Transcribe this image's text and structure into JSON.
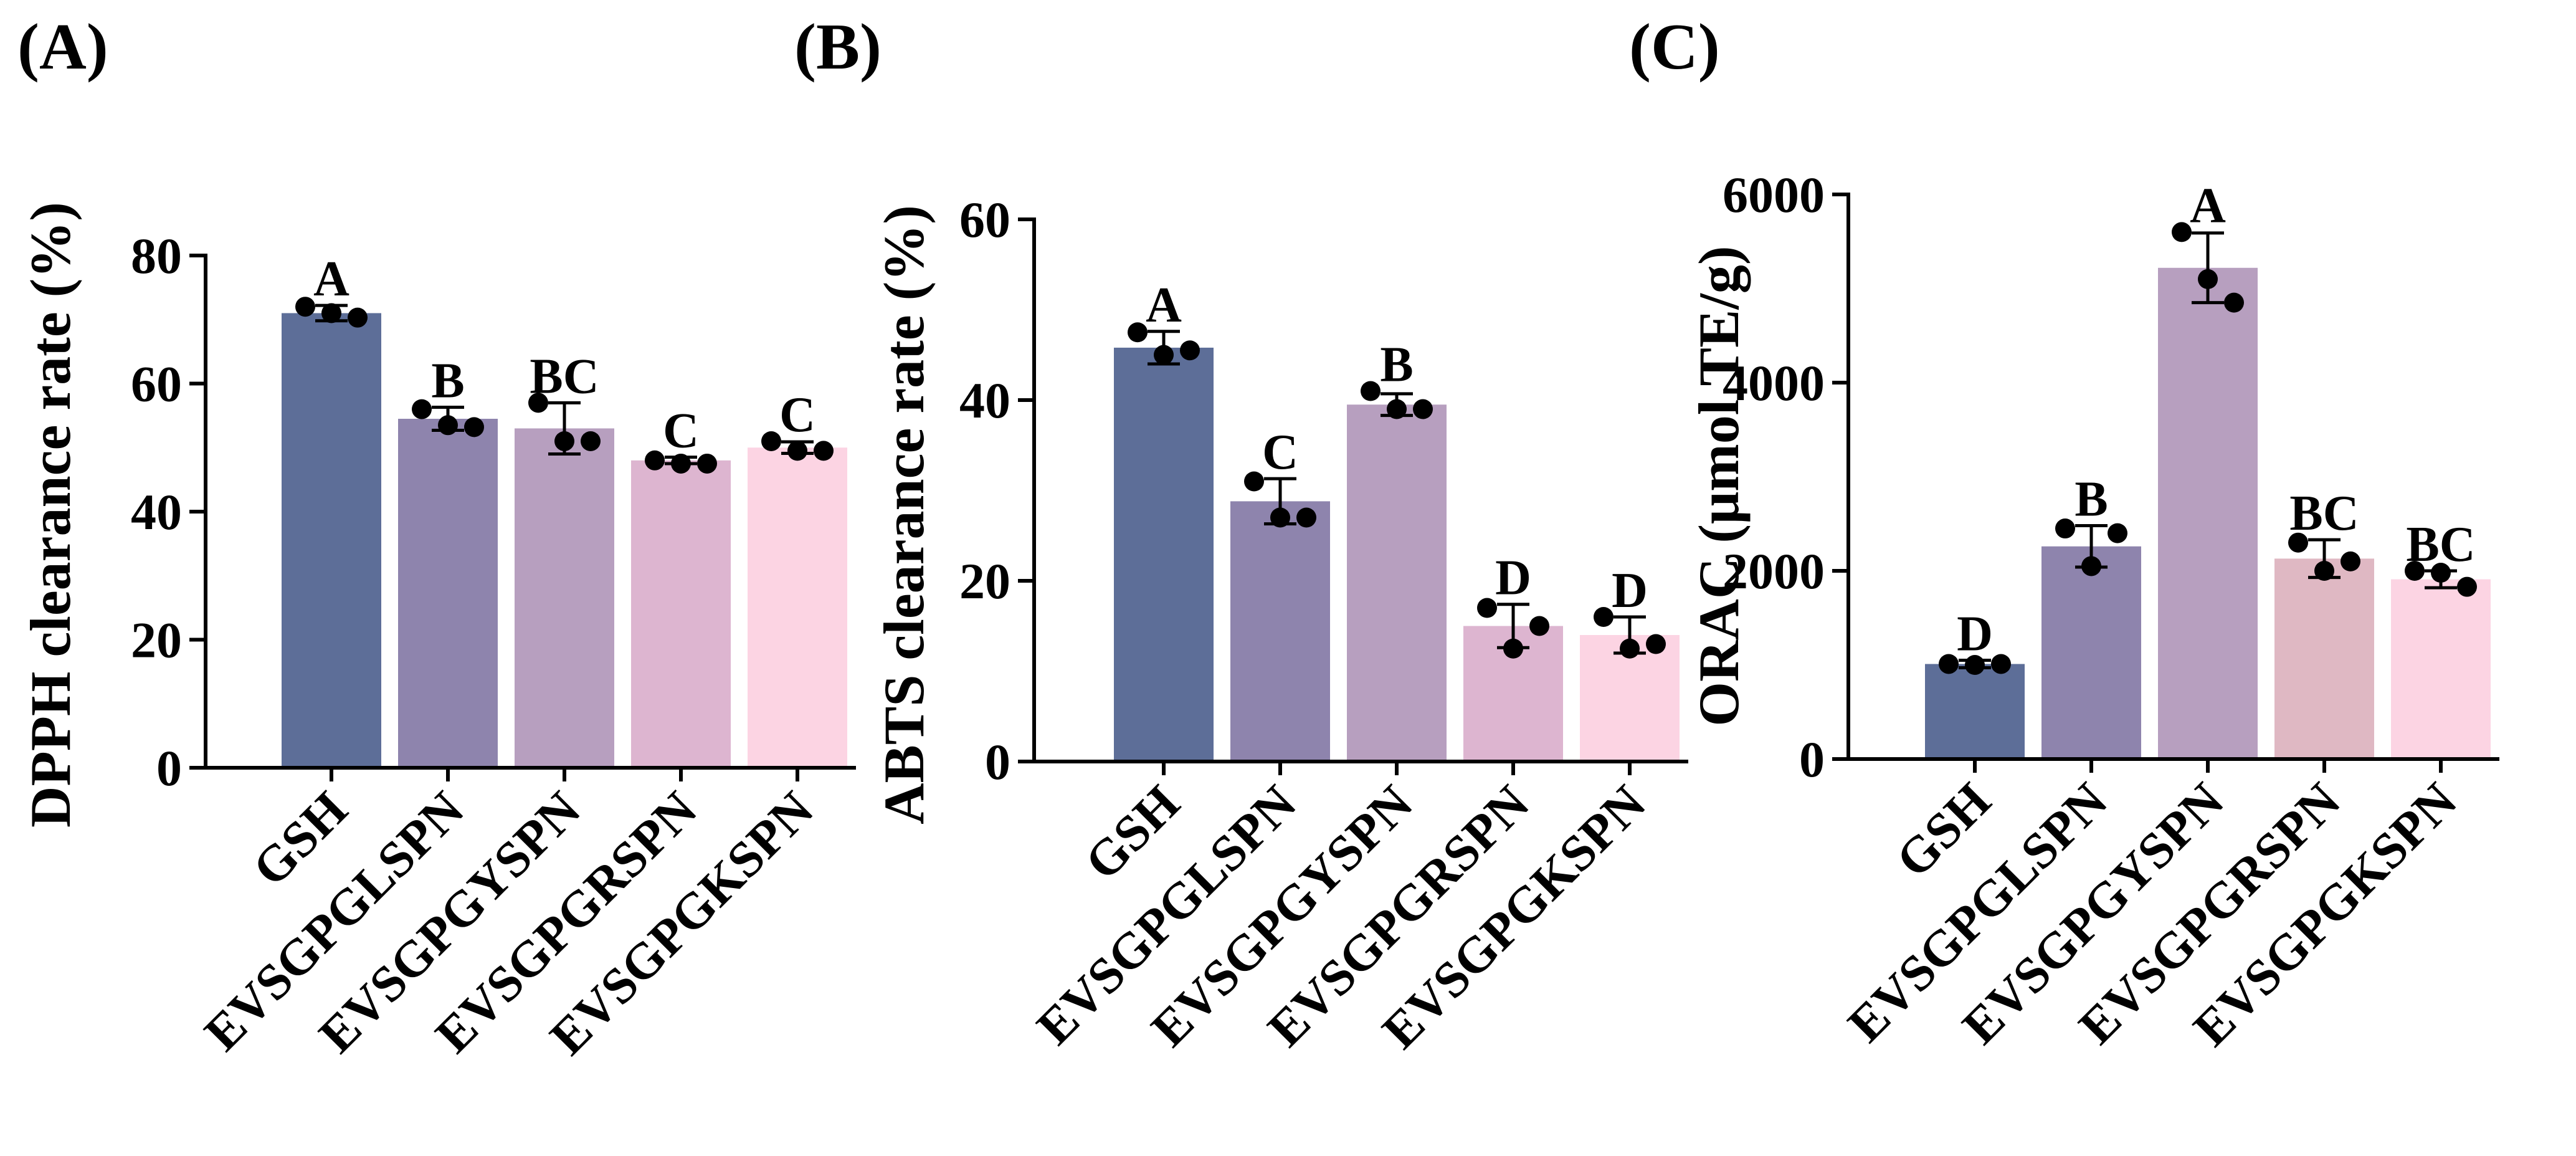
{
  "chart_data": [
    {
      "type": "bar",
      "panel": "(A)",
      "ylabel": "DPPH clearance rate (%)",
      "categories": [
        "GSH",
        "EVSGPGLSPN",
        "EVSGPGYSPN",
        "EVSGPGRSPN",
        "EVSGPGKSPN"
      ],
      "values": [
        71,
        54.5,
        53,
        48,
        50
      ],
      "errors": [
        1.2,
        1.8,
        4.0,
        0.5,
        0.9
      ],
      "points": [
        [
          72,
          71,
          70.3
        ],
        [
          56,
          53.5,
          53.2
        ],
        [
          57,
          51,
          51
        ],
        [
          48,
          47.5,
          47.5
        ],
        [
          51,
          49.5,
          49.5
        ]
      ],
      "significance": [
        "A",
        "B",
        "BC",
        "C",
        "C"
      ],
      "colors": [
        "#5d6e98",
        "#8e84ad",
        "#b79fbf",
        "#ddb5d0",
        "#fcd4e3"
      ],
      "ylim": [
        0,
        80
      ],
      "yticks": [
        0,
        20,
        40,
        60,
        80
      ],
      "ytick_labels": [
        "0",
        "20",
        "40",
        "60",
        "80"
      ]
    },
    {
      "type": "bar",
      "panel": "(B)",
      "ylabel": "ABTS clearance rate (%)",
      "categories": [
        "GSH",
        "EVSGPGLSPN",
        "EVSGPGYSPN",
        "EVSGPGRSPN",
        "EVSGPGKSPN"
      ],
      "values": [
        45.8,
        28.8,
        39.5,
        15,
        14
      ],
      "errors": [
        1.8,
        2.5,
        1.2,
        2.4,
        2.0
      ],
      "points": [
        [
          47.5,
          45,
          45.5
        ],
        [
          31,
          27,
          27
        ],
        [
          41,
          39,
          39
        ],
        [
          17,
          12.5,
          15
        ],
        [
          16,
          12.5,
          13
        ]
      ],
      "significance": [
        "A",
        "C",
        "B",
        "D",
        "D"
      ],
      "colors": [
        "#5d6e98",
        "#8e84ad",
        "#b79fbf",
        "#ddb5d0",
        "#fcd4e3"
      ],
      "ylim": [
        0,
        60
      ],
      "yticks": [
        0,
        20,
        40,
        60
      ],
      "ytick_labels": [
        "0",
        "20",
        "40",
        "60"
      ]
    },
    {
      "type": "bar",
      "panel": "(C)",
      "ylabel": "ORAC (μmol TE/g)",
      "categories": [
        "GSH",
        "EVSGPGLSPN",
        "EVSGPGYSPN",
        "EVSGPGRSPN",
        "EVSGPGKSPN"
      ],
      "values": [
        1010,
        2260,
        5220,
        2130,
        1910
      ],
      "errors": [
        40,
        220,
        370,
        200,
        90
      ],
      "points": [
        [
          1010,
          1000,
          1010
        ],
        [
          2450,
          2050,
          2400
        ],
        [
          5600,
          5100,
          4850
        ],
        [
          2300,
          2000,
          2100
        ],
        [
          2000,
          1980,
          1830
        ]
      ],
      "significance": [
        "D",
        "B",
        "A",
        "BC",
        "BC"
      ],
      "colors": [
        "#5d6e98",
        "#8e84ad",
        "#b79fbf",
        "#dfb8c3",
        "#fcd4e3"
      ],
      "ylim": [
        0,
        6000
      ],
      "yticks": [
        0,
        2000,
        4000,
        6000
      ],
      "ytick_labels": [
        "0",
        "2000",
        "4000",
        "6000"
      ]
    }
  ]
}
